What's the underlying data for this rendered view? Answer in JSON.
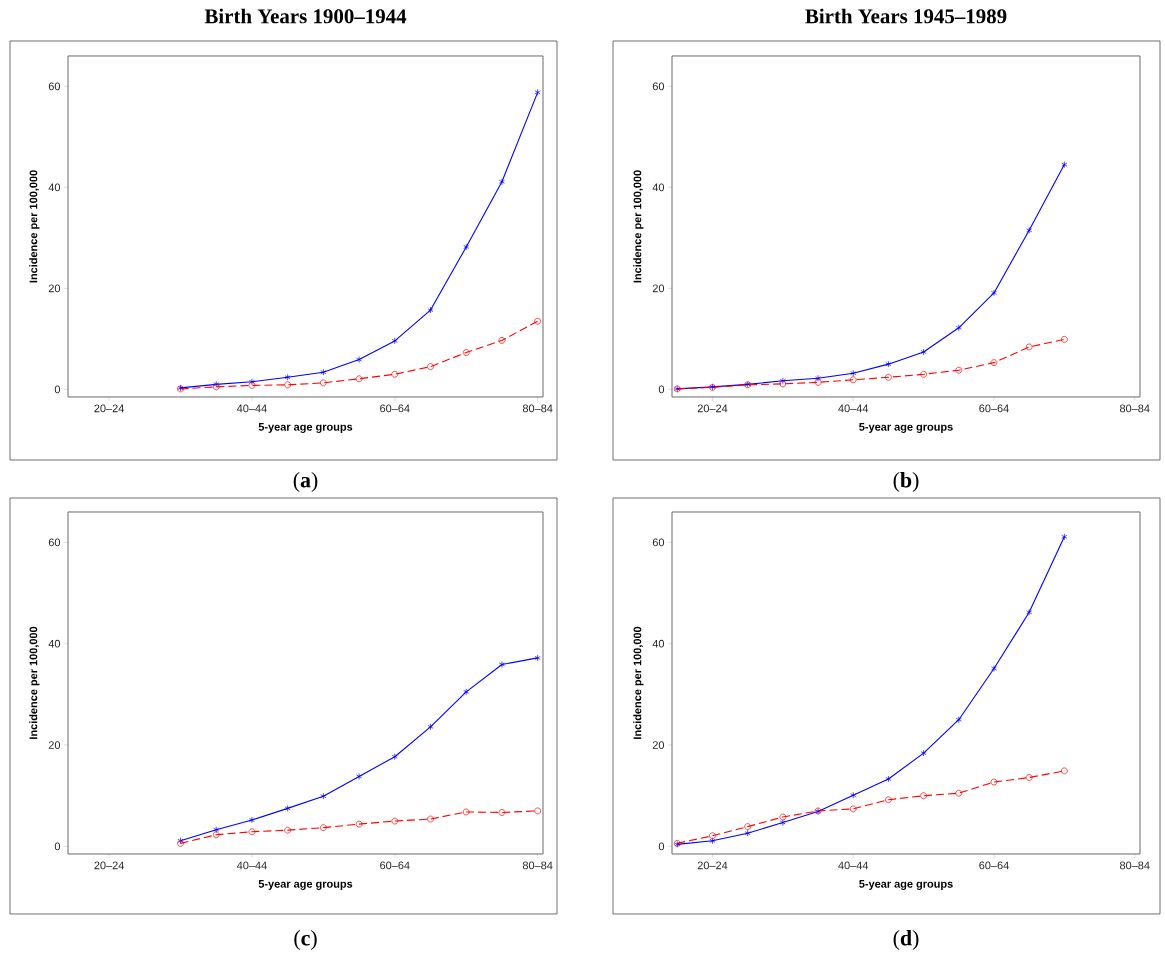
{
  "chart_data": [
    {
      "type": "line",
      "title": "Birth Years 1900–1944",
      "xlabel": "5-year age groups",
      "ylabel": "Incidence per 100,000",
      "categories": [
        null,
        "20–24",
        null,
        null,
        null,
        "40–44",
        null,
        null,
        null,
        "60–64",
        null,
        null,
        null,
        "80–84"
      ],
      "ylim": [
        -1.5,
        66
      ],
      "yticks": [
        0,
        20,
        40,
        60
      ],
      "series": [
        {
          "color": "#0000ff",
          "marker": "cross",
          "line_style": "solid",
          "values": [
            null,
            null,
            null,
            0.3,
            1.0,
            1.5,
            2.4,
            3.4,
            5.9,
            9.6,
            15.7,
            28.2,
            41.1,
            58.8
          ]
        },
        {
          "color": "#ff0000",
          "marker": "circle",
          "line_style": "dashed",
          "values": [
            null,
            null,
            null,
            0.1,
            0.5,
            0.8,
            0.9,
            1.3,
            2.1,
            3.0,
            4.5,
            7.3,
            9.7,
            13.5
          ]
        }
      ],
      "annotations": [
        "(**a**)"
      ]
    },
    {
      "type": "line",
      "title": "Birth Years 1945–1989",
      "xlabel": "5-year age groups",
      "ylabel": "Incidence per 100,000",
      "categories": [
        null,
        "20–24",
        null,
        null,
        null,
        "40–44",
        null,
        null,
        null,
        "60–64",
        null,
        null,
        null,
        "80–84"
      ],
      "ylim": [
        -1.5,
        66
      ],
      "yticks": [
        0,
        20,
        40,
        60
      ],
      "series": [
        {
          "color": "#0000ff",
          "marker": "cross",
          "line_style": "solid",
          "values": [
            0.1,
            0.5,
            1.0,
            1.7,
            2.2,
            3.2,
            5.0,
            7.4,
            12.2,
            19.1,
            31.5,
            44.5,
            null,
            null
          ]
        },
        {
          "color": "#ff0000",
          "marker": "circle",
          "line_style": "dashed",
          "values": [
            0.1,
            0.4,
            0.9,
            1.1,
            1.4,
            1.9,
            2.4,
            3.0,
            3.8,
            5.3,
            8.4,
            9.9,
            null,
            null
          ]
        }
      ],
      "annotations": [
        "(**b**)"
      ]
    },
    {
      "type": "line",
      "xlabel": "5-year age groups",
      "ylabel": "Incidence per 100,000",
      "categories": [
        null,
        "20–24",
        null,
        null,
        null,
        "40–44",
        null,
        null,
        null,
        "60–64",
        null,
        null,
        null,
        "80–84"
      ],
      "ylim": [
        -1.5,
        66
      ],
      "yticks": [
        0,
        20,
        40,
        60
      ],
      "series": [
        {
          "color": "#0000ff",
          "marker": "cross",
          "line_style": "solid",
          "values": [
            null,
            null,
            null,
            1.1,
            3.3,
            5.2,
            7.5,
            9.9,
            13.8,
            17.7,
            23.6,
            30.5,
            35.9,
            37.2
          ]
        },
        {
          "color": "#ff0000",
          "marker": "circle",
          "line_style": "dashed",
          "values": [
            null,
            null,
            null,
            0.6,
            2.3,
            2.9,
            3.2,
            3.7,
            4.4,
            5.0,
            5.4,
            6.8,
            6.7,
            7.0
          ]
        }
      ],
      "annotations": [
        "(**c**)"
      ]
    },
    {
      "type": "line",
      "xlabel": "5-year age groups",
      "ylabel": "Incidence per 100,000",
      "categories": [
        null,
        "20–24",
        null,
        null,
        null,
        "40–44",
        null,
        null,
        null,
        "60–64",
        null,
        null,
        null,
        "80–84"
      ],
      "ylim": [
        -1.5,
        66
      ],
      "yticks": [
        0,
        20,
        40,
        60
      ],
      "series": [
        {
          "color": "#0000ff",
          "marker": "cross",
          "line_style": "solid",
          "values": [
            0.4,
            1.1,
            2.6,
            4.7,
            6.9,
            10.1,
            13.3,
            18.4,
            25.0,
            35.1,
            46.2,
            61.1,
            null,
            null
          ]
        },
        {
          "color": "#ff0000",
          "marker": "circle",
          "line_style": "dashed",
          "values": [
            0.6,
            2.1,
            3.9,
            5.8,
            7.0,
            7.4,
            9.2,
            10.0,
            10.5,
            12.7,
            13.6,
            14.9,
            null,
            null
          ]
        }
      ],
      "annotations": [
        "(**d**)"
      ]
    }
  ]
}
